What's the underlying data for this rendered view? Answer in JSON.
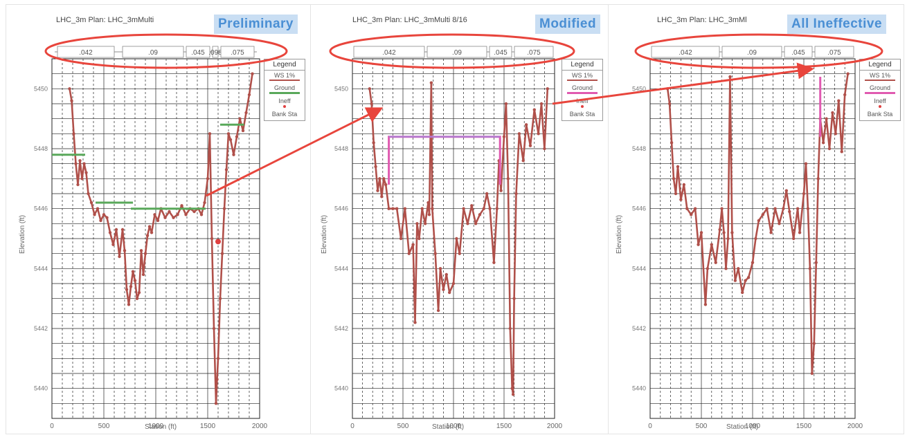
{
  "panels": [
    {
      "stage_label": "Preliminary",
      "plot_title": "LHC_3m      Plan: LHC_3mMulti",
      "legend": {
        "title": "Legend",
        "items": [
          "WS 1%",
          "Ground",
          "Ineff",
          "Bank Sta"
        ]
      }
    },
    {
      "stage_label": "Modified",
      "plot_title": "LHC_3m      Plan: LHC_3mMulti   8/16",
      "legend": {
        "title": "Legend",
        "items": [
          "WS 1%",
          "Ground",
          "Ineff",
          "Bank Sta"
        ]
      }
    },
    {
      "stage_label": "All Ineffective",
      "plot_title": "LHC_3m      Plan: LHC_3mMl",
      "legend": {
        "title": "Legend",
        "items": [
          "WS 1%",
          "Ground",
          "Ineff",
          "Bank Sta"
        ]
      }
    }
  ],
  "colors": {
    "ground": "#b0504a",
    "ws": "#59a85a",
    "ineff": "#e05ab0",
    "bank": "#e04040",
    "highlight": "#e8453c",
    "grid": "#222222"
  },
  "chart_data": [
    {
      "type": "line",
      "panel": "Preliminary",
      "xlabel": "Station (ft)",
      "ylabel": "Elevation (ft)",
      "xlim": [
        0,
        2000
      ],
      "ylim": [
        5439,
        5451
      ],
      "x_ticks": [
        0,
        500,
        1000,
        1500,
        2000
      ],
      "y_ticks": [
        5440,
        5442,
        5444,
        5446,
        5448,
        5450
      ],
      "x_tick_labels": [
        "0",
        "500",
        "1000",
        "1500",
        "2000"
      ],
      "y_tick_labels": [
        "5440",
        "5442",
        "5444",
        "5446",
        "5448",
        "5450"
      ],
      "manning_n_values": [
        ".042",
        ".09",
        ".045",
        ".098",
        ".075"
      ],
      "series": [
        {
          "name": "Ground",
          "points": [
            [
              170,
              5450
            ],
            [
              190,
              5449.6
            ],
            [
              210,
              5448.5
            ],
            [
              230,
              5447.5
            ],
            [
              250,
              5446.8
            ],
            [
              270,
              5447.6
            ],
            [
              290,
              5447.0
            ],
            [
              310,
              5447.5
            ],
            [
              330,
              5447.2
            ],
            [
              350,
              5446.5
            ],
            [
              380,
              5446.2
            ],
            [
              410,
              5445.8
            ],
            [
              440,
              5446.0
            ],
            [
              470,
              5445.6
            ],
            [
              500,
              5445.8
            ],
            [
              530,
              5445.7
            ],
            [
              560,
              5445.2
            ],
            [
              590,
              5444.8
            ],
            [
              620,
              5445.3
            ],
            [
              650,
              5444.4
            ],
            [
              680,
              5445.3
            ],
            [
              700,
              5444.6
            ],
            [
              720,
              5443.3
            ],
            [
              740,
              5442.8
            ],
            [
              760,
              5443.4
            ],
            [
              780,
              5443.9
            ],
            [
              800,
              5443.6
            ],
            [
              820,
              5443.0
            ],
            [
              840,
              5443.2
            ],
            [
              860,
              5444.6
            ],
            [
              880,
              5443.8
            ],
            [
              900,
              5444.5
            ],
            [
              920,
              5445.1
            ],
            [
              940,
              5445.4
            ],
            [
              960,
              5445.2
            ],
            [
              990,
              5445.8
            ],
            [
              1020,
              5445.6
            ],
            [
              1050,
              5446.0
            ],
            [
              1090,
              5445.7
            ],
            [
              1130,
              5445.9
            ],
            [
              1170,
              5445.7
            ],
            [
              1210,
              5445.8
            ],
            [
              1250,
              5446.1
            ],
            [
              1290,
              5445.8
            ],
            [
              1330,
              5446.0
            ],
            [
              1370,
              5445.9
            ],
            [
              1410,
              5446.0
            ],
            [
              1440,
              5445.8
            ],
            [
              1470,
              5446.2
            ],
            [
              1500,
              5447.0
            ],
            [
              1520,
              5448.5
            ],
            [
              1540,
              5445.0
            ],
            [
              1560,
              5442.0
            ],
            [
              1580,
              5439.5
            ],
            [
              1590,
              5440.3
            ],
            [
              1600,
              5441.0
            ],
            [
              1620,
              5443.0
            ],
            [
              1640,
              5444.5
            ],
            [
              1660,
              5446.0
            ],
            [
              1680,
              5447.3
            ],
            [
              1700,
              5448.5
            ],
            [
              1720,
              5448.3
            ],
            [
              1750,
              5447.8
            ],
            [
              1780,
              5448.4
            ],
            [
              1810,
              5449.0
            ],
            [
              1840,
              5448.6
            ],
            [
              1870,
              5449.2
            ],
            [
              1900,
              5449.8
            ],
            [
              1930,
              5450.5
            ]
          ]
        },
        {
          "name": "WS 1%",
          "segments": [
            [
              [
                0,
                5447.8
              ],
              [
                320,
                5447.8
              ]
            ],
            [
              [
                420,
                5446.2
              ],
              [
                780,
                5446.2
              ]
            ],
            [
              [
                760,
                5446.0
              ],
              [
                1480,
                5446.0
              ]
            ],
            [
              [
                1620,
                5448.8
              ],
              [
                1850,
                5448.8
              ]
            ]
          ]
        },
        {
          "name": "Bank Sta",
          "points": [
            [
              1600,
              5444.9
            ]
          ]
        }
      ]
    },
    {
      "type": "line",
      "panel": "Modified",
      "xlabel": "Station (ft)",
      "ylabel": "Elevation (ft)",
      "xlim": [
        0,
        2000
      ],
      "ylim": [
        5439,
        5451
      ],
      "x_ticks": [
        0,
        500,
        1000,
        1500,
        2000
      ],
      "y_ticks": [
        5440,
        5442,
        5444,
        5446,
        5448,
        5450
      ],
      "x_tick_labels": [
        "0",
        "500",
        "1000",
        "1500",
        "2000"
      ],
      "y_tick_labels": [
        "5440",
        "5442",
        "5444",
        "5446",
        "5448",
        "5450"
      ],
      "manning_n_values": [
        ".042",
        ".09",
        ".045",
        ".075"
      ],
      "series": [
        {
          "name": "Ground",
          "points": [
            [
              170,
              5450
            ],
            [
              190,
              5449.5
            ],
            [
              210,
              5448.2
            ],
            [
              230,
              5447.4
            ],
            [
              250,
              5446.6
            ],
            [
              270,
              5447.0
            ],
            [
              290,
              5446.4
            ],
            [
              310,
              5447.0
            ],
            [
              330,
              5446.8
            ],
            [
              360,
              5446.0
            ],
            [
              400,
              5446.0
            ],
            [
              440,
              5446.0
            ],
            [
              480,
              5445.0
            ],
            [
              520,
              5446.0
            ],
            [
              560,
              5444.5
            ],
            [
              600,
              5444.8
            ],
            [
              620,
              5442.2
            ],
            [
              640,
              5445.5
            ],
            [
              660,
              5445.0
            ],
            [
              690,
              5446.0
            ],
            [
              720,
              5445.5
            ],
            [
              750,
              5446.2
            ],
            [
              760,
              5445.8
            ],
            [
              780,
              5450.2
            ],
            [
              790,
              5446.0
            ],
            [
              820,
              5444.5
            ],
            [
              850,
              5442.6
            ],
            [
              870,
              5444.0
            ],
            [
              900,
              5443.3
            ],
            [
              930,
              5443.8
            ],
            [
              960,
              5443.2
            ],
            [
              1000,
              5443.5
            ],
            [
              1030,
              5445.0
            ],
            [
              1060,
              5444.5
            ],
            [
              1100,
              5446.0
            ],
            [
              1140,
              5445.5
            ],
            [
              1180,
              5446.1
            ],
            [
              1220,
              5445.5
            ],
            [
              1260,
              5445.8
            ],
            [
              1300,
              5446.0
            ],
            [
              1330,
              5446.5
            ],
            [
              1360,
              5446.0
            ],
            [
              1400,
              5444.2
            ],
            [
              1430,
              5446.0
            ],
            [
              1450,
              5447.6
            ],
            [
              1470,
              5446.6
            ],
            [
              1500,
              5448.4
            ],
            [
              1520,
              5449.5
            ],
            [
              1540,
              5447.0
            ],
            [
              1560,
              5442.0
            ],
            [
              1580,
              5440.0
            ],
            [
              1590,
              5439.8
            ],
            [
              1600,
              5443.0
            ],
            [
              1620,
              5446.5
            ],
            [
              1650,
              5448.5
            ],
            [
              1690,
              5447.6
            ],
            [
              1720,
              5448.8
            ],
            [
              1760,
              5448.1
            ],
            [
              1800,
              5449.3
            ],
            [
              1840,
              5448.5
            ],
            [
              1870,
              5449.5
            ],
            [
              1900,
              5448.0
            ],
            [
              1930,
              5450.0
            ]
          ]
        },
        {
          "name": "Ineff",
          "segments": [
            [
              [
                360,
                5446.8
              ],
              [
                360,
                5448.4
              ],
              [
                1460,
                5448.4
              ],
              [
                1460,
                5446.8
              ]
            ]
          ]
        },
        {
          "name": "WS 1%",
          "segments": [
            [
              [
                360,
                5448.4
              ],
              [
                1460,
                5448.4
              ]
            ]
          ]
        }
      ]
    },
    {
      "type": "line",
      "panel": "All Ineffective",
      "xlabel": "Station (ft)",
      "ylabel": "Elevation (ft)",
      "xlim": [
        0,
        2000
      ],
      "ylim": [
        5439,
        5451
      ],
      "x_ticks": [
        0,
        500,
        1000,
        1500,
        2000
      ],
      "y_ticks": [
        5440,
        5442,
        5444,
        5446,
        5448,
        5450
      ],
      "x_tick_labels": [
        "0",
        "500",
        "1000",
        "1500",
        "2000"
      ],
      "y_tick_labels": [
        "5440",
        "5442",
        "5444",
        "5446",
        "5448",
        "5450"
      ],
      "manning_n_values": [
        ".042",
        ".09",
        ".045",
        ".075"
      ],
      "series": [
        {
          "name": "Ground",
          "points": [
            [
              170,
              5450
            ],
            [
              190,
              5449.5
            ],
            [
              210,
              5448.2
            ],
            [
              230,
              5447.0
            ],
            [
              250,
              5446.5
            ],
            [
              270,
              5447.4
            ],
            [
              300,
              5446.3
            ],
            [
              330,
              5446.8
            ],
            [
              360,
              5446.0
            ],
            [
              400,
              5445.8
            ],
            [
              440,
              5446.0
            ],
            [
              470,
              5444.8
            ],
            [
              500,
              5445.2
            ],
            [
              540,
              5442.8
            ],
            [
              560,
              5444.0
            ],
            [
              600,
              5444.8
            ],
            [
              640,
              5444.2
            ],
            [
              680,
              5445.3
            ],
            [
              700,
              5446.0
            ],
            [
              720,
              5445.2
            ],
            [
              740,
              5444.0
            ],
            [
              760,
              5445.0
            ],
            [
              780,
              5450.4
            ],
            [
              800,
              5445.2
            ],
            [
              830,
              5443.6
            ],
            [
              860,
              5444.0
            ],
            [
              900,
              5443.2
            ],
            [
              930,
              5443.6
            ],
            [
              960,
              5443.7
            ],
            [
              1000,
              5444.2
            ],
            [
              1030,
              5445.0
            ],
            [
              1060,
              5445.6
            ],
            [
              1100,
              5445.8
            ],
            [
              1140,
              5446.0
            ],
            [
              1180,
              5445.2
            ],
            [
              1220,
              5446.0
            ],
            [
              1260,
              5445.5
            ],
            [
              1300,
              5446.0
            ],
            [
              1330,
              5446.6
            ],
            [
              1360,
              5445.9
            ],
            [
              1400,
              5445.0
            ],
            [
              1440,
              5446.0
            ],
            [
              1460,
              5445.2
            ],
            [
              1500,
              5446.5
            ],
            [
              1520,
              5447.5
            ],
            [
              1540,
              5446.0
            ],
            [
              1560,
              5444.0
            ],
            [
              1580,
              5440.5
            ],
            [
              1600,
              5441.5
            ],
            [
              1620,
              5444.2
            ],
            [
              1640,
              5447.0
            ],
            [
              1660,
              5449.0
            ],
            [
              1690,
              5448.2
            ],
            [
              1720,
              5449.0
            ],
            [
              1750,
              5448.0
            ],
            [
              1780,
              5449.2
            ],
            [
              1810,
              5448.5
            ],
            [
              1840,
              5449.6
            ],
            [
              1870,
              5447.9
            ],
            [
              1900,
              5449.8
            ],
            [
              1930,
              5450.5
            ]
          ]
        },
        {
          "name": "Ineff",
          "segments": [
            [
              [
                1660,
                5450.4
              ],
              [
                1660,
                5448.4
              ]
            ]
          ]
        }
      ]
    }
  ]
}
